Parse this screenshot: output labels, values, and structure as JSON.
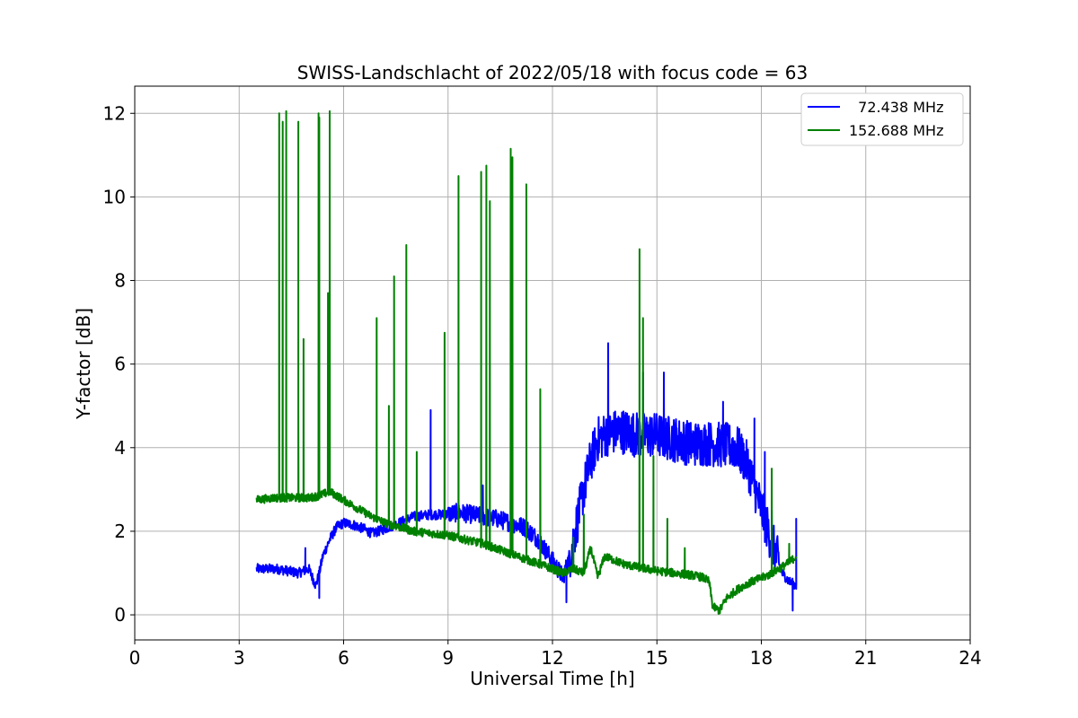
{
  "chart_data": {
    "type": "line",
    "title": "SWISS-Landschlacht of 2022/05/18 with focus code = 63",
    "xlabel": "Universal Time [h]",
    "ylabel": "Y-factor [dB]",
    "xlim": [
      0,
      24
    ],
    "ylim": [
      -0.6,
      12.65
    ],
    "xticks": [
      0,
      3,
      6,
      9,
      12,
      15,
      18,
      21,
      24
    ],
    "yticks": [
      0,
      2,
      4,
      6,
      8,
      10,
      12
    ],
    "grid": true,
    "legend_position": "upper right",
    "series": [
      {
        "name": "  72.438 MHz",
        "color": "#0000ff",
        "x": [
          3.5,
          3.8,
          4.1,
          4.4,
          4.7,
          5.0,
          5.2,
          5.3,
          5.4,
          5.6,
          5.8,
          6.0,
          6.3,
          6.6,
          6.8,
          7.0,
          7.3,
          7.6,
          8.0,
          8.5,
          8.9,
          9.3,
          9.7,
          10.0,
          10.4,
          10.8,
          11.2,
          11.6,
          12.0,
          12.3,
          12.5,
          12.7,
          12.9,
          13.1,
          13.3,
          13.6,
          14.0,
          14.5,
          15.0,
          15.5,
          16.0,
          16.5,
          17.0,
          17.3,
          17.6,
          17.9,
          18.2,
          18.4,
          18.6,
          18.8,
          19.0
        ],
        "y": [
          1.1,
          1.1,
          1.1,
          1.05,
          1.0,
          1.1,
          0.7,
          1.0,
          1.4,
          1.8,
          2.1,
          2.2,
          2.15,
          2.05,
          1.95,
          2.0,
          2.1,
          2.2,
          2.35,
          2.4,
          2.4,
          2.45,
          2.4,
          2.35,
          2.3,
          2.2,
          2.1,
          1.8,
          1.3,
          0.9,
          1.4,
          2.2,
          3.0,
          3.7,
          4.2,
          4.35,
          4.4,
          4.3,
          4.3,
          4.2,
          4.1,
          4.1,
          4.05,
          4.0,
          3.6,
          2.8,
          2.0,
          1.5,
          1.0,
          0.8,
          0.7
        ],
        "spikes": [
          [
            4.9,
            1.6
          ],
          [
            5.3,
            0.4
          ],
          [
            8.5,
            4.9
          ],
          [
            10.0,
            3.1
          ],
          [
            10.8,
            3.5
          ],
          [
            12.4,
            0.3
          ],
          [
            13.6,
            6.5
          ],
          [
            14.6,
            5.8
          ],
          [
            15.2,
            5.8
          ],
          [
            16.9,
            5.1
          ],
          [
            17.8,
            4.7
          ],
          [
            18.1,
            3.9
          ],
          [
            18.3,
            2.5
          ],
          [
            18.9,
            0.1
          ],
          [
            19.0,
            2.3
          ]
        ]
      },
      {
        "name": "152.688 MHz",
        "color": "#008000",
        "x": [
          3.5,
          4.0,
          4.5,
          5.0,
          5.3,
          5.6,
          5.9,
          6.2,
          6.5,
          6.8,
          7.2,
          7.6,
          8.0,
          8.5,
          9.0,
          9.5,
          10.0,
          10.5,
          11.0,
          11.5,
          12.0,
          12.3,
          12.6,
          12.9,
          13.1,
          13.3,
          13.5,
          13.8,
          14.1,
          14.4,
          14.7,
          15.0,
          15.5,
          16.0,
          16.3,
          16.5,
          16.6,
          16.8,
          17.0,
          17.3,
          17.6,
          17.9,
          18.2,
          18.5,
          18.8,
          19.0
        ],
        "y": [
          2.75,
          2.8,
          2.8,
          2.8,
          2.85,
          2.95,
          2.8,
          2.65,
          2.5,
          2.35,
          2.2,
          2.1,
          2.0,
          1.95,
          1.9,
          1.8,
          1.7,
          1.55,
          1.4,
          1.25,
          1.1,
          1.0,
          1.1,
          1.0,
          1.6,
          0.9,
          1.4,
          1.3,
          1.2,
          1.15,
          1.1,
          1.05,
          1.0,
          0.95,
          0.9,
          0.8,
          0.2,
          0.1,
          0.4,
          0.6,
          0.75,
          0.85,
          0.95,
          1.1,
          1.25,
          1.4
        ],
        "spikes": [
          [
            4.15,
            12.0
          ],
          [
            4.25,
            11.8
          ],
          [
            4.35,
            12.05
          ],
          [
            4.7,
            11.8
          ],
          [
            4.7,
            4.9
          ],
          [
            4.85,
            6.6
          ],
          [
            5.28,
            12.0
          ],
          [
            5.3,
            11.9
          ],
          [
            5.6,
            12.05
          ],
          [
            5.55,
            7.7
          ],
          [
            6.95,
            7.1
          ],
          [
            7.3,
            5.0
          ],
          [
            7.45,
            8.1
          ],
          [
            7.8,
            8.85
          ],
          [
            8.1,
            3.9
          ],
          [
            8.9,
            6.75
          ],
          [
            9.3,
            10.5
          ],
          [
            9.95,
            10.6
          ],
          [
            10.1,
            10.75
          ],
          [
            10.2,
            9.9
          ],
          [
            10.8,
            11.15
          ],
          [
            10.85,
            10.95
          ],
          [
            11.25,
            10.3
          ],
          [
            11.65,
            5.4
          ],
          [
            12.6,
            1.85
          ],
          [
            12.9,
            2.4
          ],
          [
            14.5,
            8.75
          ],
          [
            14.6,
            7.1
          ],
          [
            14.9,
            3.8
          ],
          [
            15.3,
            2.3
          ],
          [
            15.8,
            1.6
          ],
          [
            18.3,
            3.5
          ],
          [
            18.8,
            1.7
          ]
        ]
      }
    ]
  }
}
